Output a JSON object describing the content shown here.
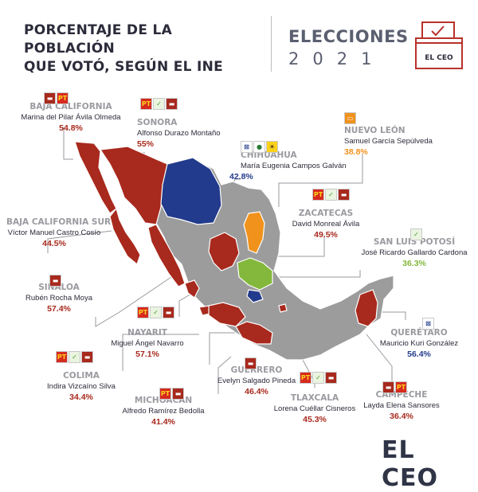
{
  "header": {
    "title_line1": "PORCENTAJE DE LA POBLACIÓN",
    "title_line2": "QUE VOTÓ, SEGÚN EL INE",
    "elecciones": "ELECCIONES",
    "year": "2021",
    "ballot_text": "EL CEO"
  },
  "brand": "EL CEO",
  "colors": {
    "red": "#a8291d",
    "blue": "#233b8c",
    "orange": "#f0921c",
    "green": "#84b83c",
    "gray": "#9c9c9c",
    "text_dark": "#2b2b3a",
    "label_gray": "#9a9aa0"
  },
  "legend_note_icons": [
    "morena-logo",
    "pt-logo",
    "pvem-logo",
    "pan-logo",
    "mc-logo",
    "pri-logo",
    "prd-logo"
  ],
  "states": [
    {
      "state": "BAJA CALIFORNIA",
      "person": "Marina del Pilar Ávila Olmeda",
      "pct": "54.8%",
      "party": "red",
      "logos": [
        "morena",
        "pt"
      ]
    },
    {
      "state": "SONORA",
      "person": "Alfonso Durazo Montaño",
      "pct": "55%",
      "party": "red",
      "logos": [
        "pt",
        "pvem",
        "morena"
      ]
    },
    {
      "state": "CHIHUAHUA",
      "person": "María Eugenia Campos Galván",
      "pct": "42.8%",
      "party": "blue",
      "logos": [
        "pan",
        "pri",
        "prd"
      ]
    },
    {
      "state": "NUEVO LEÓN",
      "person": "Samuel García Sepúlveda",
      "pct": "38.8%",
      "party": "orange",
      "logos": [
        "mc"
      ]
    },
    {
      "state": "BAJA CALIFORNIA SUR",
      "person": "Víctor Manuel Castro Cosío",
      "pct": "44.5%",
      "party": "red",
      "logos": []
    },
    {
      "state": "ZACATECAS",
      "person": "David Monreal Ávila",
      "pct": "49.5%",
      "party": "red",
      "logos": [
        "pt",
        "pvem",
        "morena"
      ]
    },
    {
      "state": "SAN LUIS POTOSÍ",
      "person": "José Ricardo Gallardo Cardona",
      "pct": "36.3%",
      "party": "green",
      "logos": [
        "pvem"
      ]
    },
    {
      "state": "SINALOA",
      "person": "Rubén Rocha Moya",
      "pct": "57.4%",
      "party": "red",
      "logos": [
        "morena"
      ]
    },
    {
      "state": "NAYARIT",
      "person": "Miguel Ángel Navarro",
      "pct": "57.1%",
      "party": "red",
      "logos": [
        "pt",
        "pvem",
        "morena"
      ]
    },
    {
      "state": "QUERÉTARO",
      "person": "Mauricio Kuri González",
      "pct": "56.4%",
      "party": "blue",
      "logos": [
        "pan"
      ]
    },
    {
      "state": "COLIMA",
      "person": "Indira Vizcaíno Silva",
      "pct": "34.4%",
      "party": "red",
      "logos": [
        "pt",
        "pvem",
        "morena"
      ]
    },
    {
      "state": "GUERRERO",
      "person": "Evelyn Salgado Pineda",
      "pct": "46.4%",
      "party": "red",
      "logos": [
        "morena"
      ]
    },
    {
      "state": "MICHOACÁN",
      "person": "Alfredo Ramírez Bedolla",
      "pct": "41.4%",
      "party": "red",
      "logos": [
        "pt",
        "morena"
      ]
    },
    {
      "state": "TLAXCALA",
      "person": "Lorena Cuéllar Cisneros",
      "pct": "45.3%",
      "party": "red",
      "logos": [
        "pt",
        "pvem",
        "morena"
      ]
    },
    {
      "state": "CAMPECHE",
      "person": "Layda Elena Sansores",
      "pct": "36.4%",
      "party": "red",
      "logos": [
        "morena",
        "pt"
      ]
    }
  ]
}
